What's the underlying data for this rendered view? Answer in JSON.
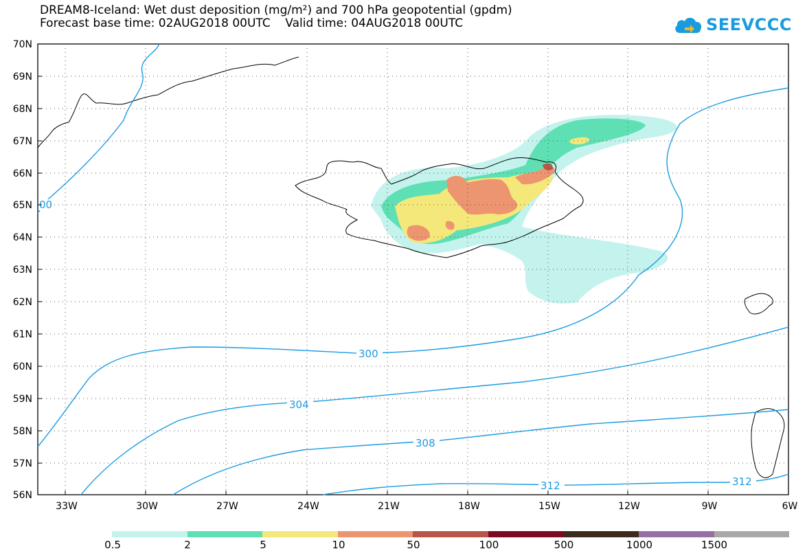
{
  "header": {
    "line1": "DREAM8-Iceland: Wet dust deposition (mg/m²) and 700 hPa geopotential (gpdm)",
    "line2": "Forecast base time: 02AUG2018 00UTC    Valid time: 04AUG2018 00UTC"
  },
  "logo": {
    "text": "SEEVCCC",
    "icon": "cloud-arrow-icon",
    "color": "#1a9be0"
  },
  "map": {
    "lat_labels": [
      "70N",
      "69N",
      "68N",
      "67N",
      "66N",
      "65N",
      "64N",
      "63N",
      "62N",
      "61N",
      "60N",
      "59N",
      "58N",
      "57N",
      "56N"
    ],
    "lon_labels": [
      "33W",
      "30W",
      "27W",
      "24W",
      "21W",
      "18W",
      "15W",
      "12W",
      "9W",
      "6W"
    ],
    "contour_color": "#1a9be0",
    "contour_labels": [
      "00",
      "300",
      "304",
      "308",
      "312",
      "312"
    ]
  },
  "legend": {
    "colors": [
      "#c4f3ee",
      "#5fe0b4",
      "#f5e87a",
      "#ec9570",
      "#b8564a",
      "#7c0a22",
      "#3c2b1c",
      "#9670a4",
      "#a8a8a8"
    ],
    "labels": [
      "0.5",
      "2",
      "5",
      "10",
      "50",
      "100",
      "500",
      "1000",
      "1500"
    ]
  }
}
